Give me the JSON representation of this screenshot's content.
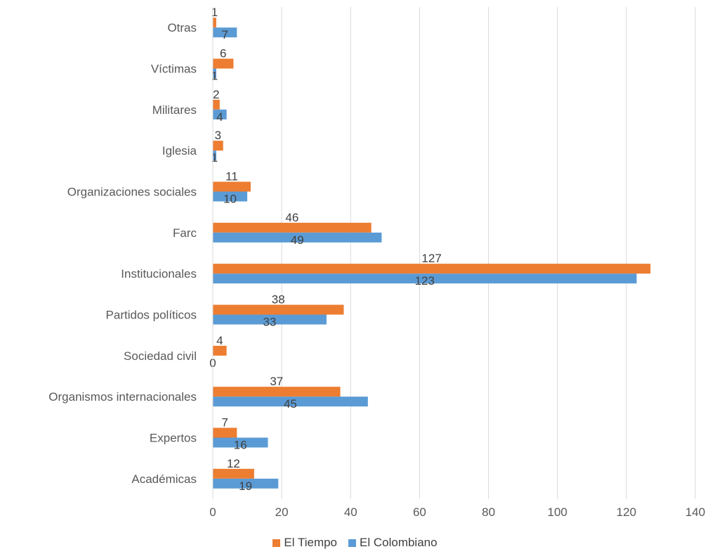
{
  "chart_data": {
    "type": "bar",
    "orientation": "horizontal",
    "categories": [
      "Académicas",
      "Expertos",
      "Organismos internacionales",
      "Sociedad civil",
      "Partidos políticos",
      "Institucionales",
      "Farc",
      "Organizaciones sociales",
      "Iglesia",
      "Militares",
      "Víctimas",
      "Otras"
    ],
    "series": [
      {
        "name": "El Tiempo",
        "color": "#ED7D31",
        "values": [
          12,
          7,
          37,
          4,
          38,
          127,
          46,
          11,
          3,
          2,
          6,
          1
        ]
      },
      {
        "name": "El Colombiano",
        "color": "#5B9BD5",
        "values": [
          19,
          16,
          45,
          0,
          33,
          123,
          49,
          10,
          1,
          4,
          1,
          7
        ]
      }
    ],
    "xlim": [
      0,
      140
    ],
    "xticks": [
      0,
      20,
      40,
      60,
      80,
      100,
      120,
      140
    ],
    "xtick_labels": [
      "0",
      "20",
      "40",
      "60",
      "80",
      "100",
      "120",
      "140"
    ],
    "grid": "vertical",
    "legend_position": "bottom",
    "data_labels": true
  }
}
